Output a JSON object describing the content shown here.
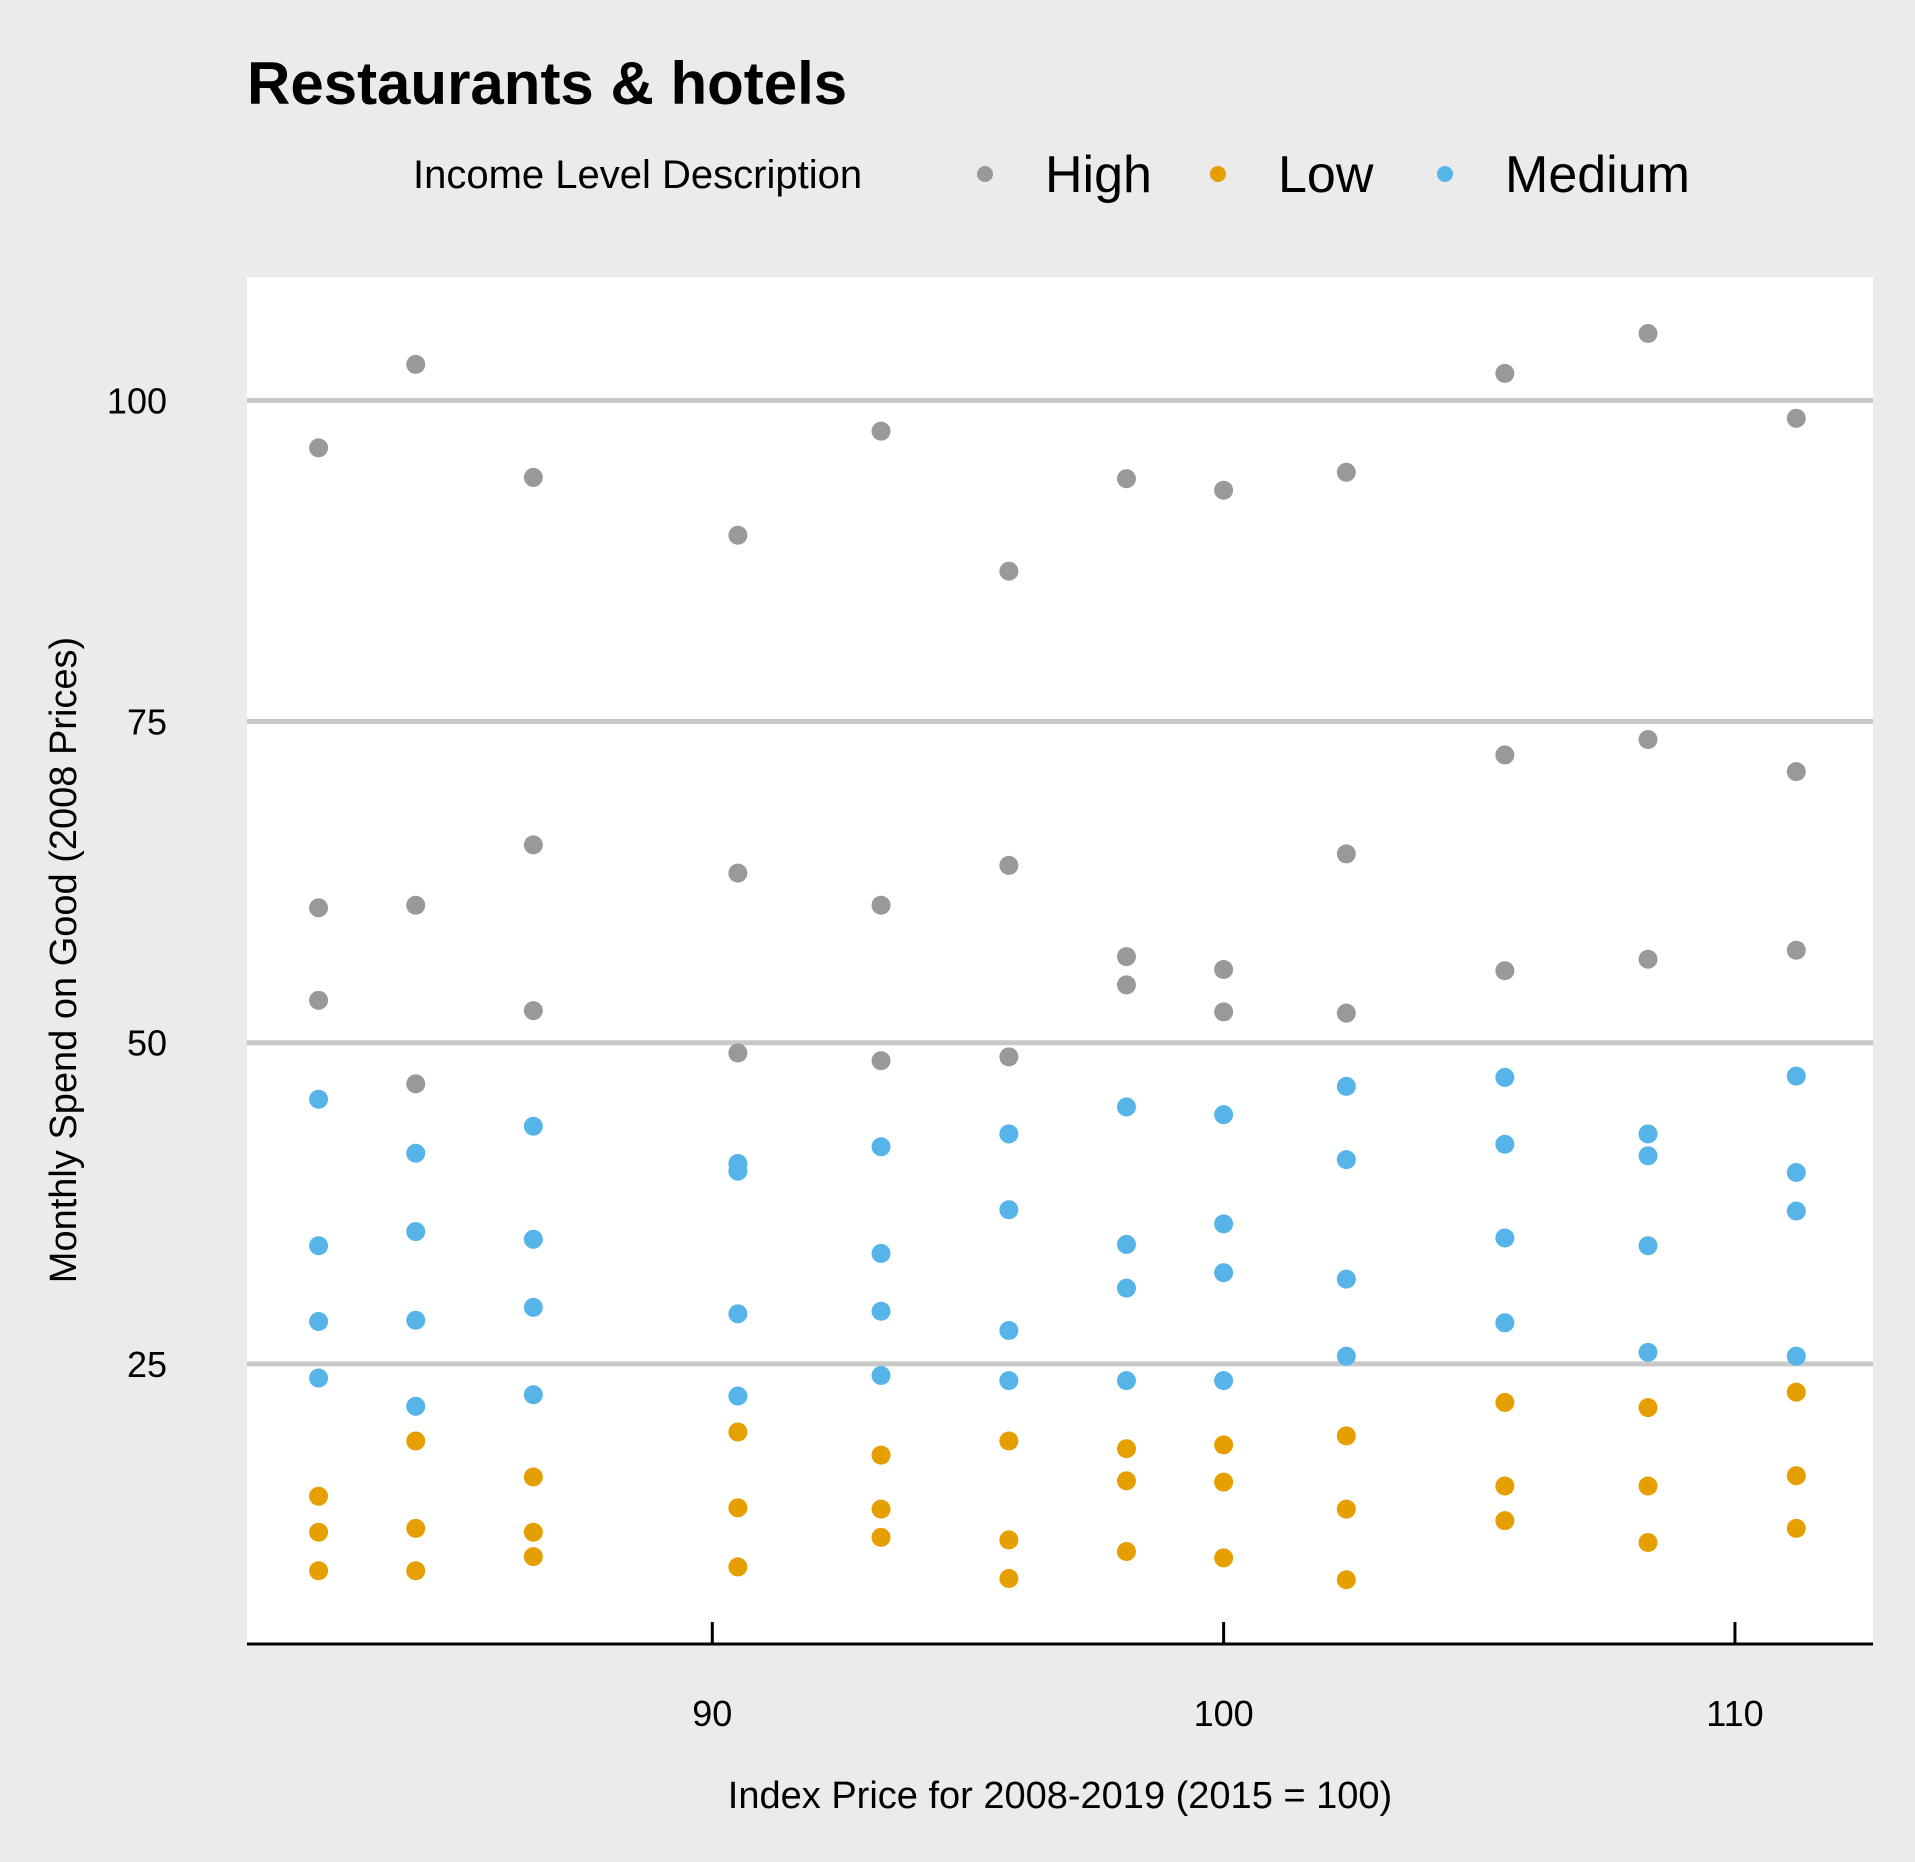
{
  "chart_data": {
    "type": "scatter",
    "title": "Restaurants & hotels",
    "xlabel": "Index Price for 2008-2019 (2015 = 100)",
    "ylabel": "Monthly Spend on Good (2008 Prices)",
    "xlim": [
      80.9,
      112.7
    ],
    "ylim": [
      3.2,
      109.6
    ],
    "xticks": [
      90,
      100,
      110
    ],
    "yticks": [
      25,
      50,
      75,
      100
    ],
    "grid": "horizontal",
    "legend": {
      "title": "Income Level Description",
      "placement": "top",
      "entries": [
        "High",
        "Low",
        "Medium"
      ]
    },
    "series": [
      {
        "name": "High",
        "color": "#999999",
        "points": [
          [
            82.3,
            96.3
          ],
          [
            82.3,
            60.5
          ],
          [
            82.3,
            53.3
          ],
          [
            84.2,
            102.8
          ],
          [
            84.2,
            60.7
          ],
          [
            84.2,
            46.8
          ],
          [
            86.5,
            94.0
          ],
          [
            86.5,
            65.4
          ],
          [
            86.5,
            52.5
          ],
          [
            90.5,
            89.5
          ],
          [
            90.5,
            63.2
          ],
          [
            90.5,
            49.2
          ],
          [
            93.3,
            97.6
          ],
          [
            93.3,
            60.7
          ],
          [
            93.3,
            48.6
          ],
          [
            95.8,
            86.7
          ],
          [
            95.8,
            63.8
          ],
          [
            95.8,
            48.9
          ],
          [
            98.1,
            93.9
          ],
          [
            98.1,
            56.7
          ],
          [
            98.1,
            54.5
          ],
          [
            100.0,
            93.0
          ],
          [
            100.0,
            55.7
          ],
          [
            100.0,
            52.4
          ],
          [
            102.4,
            94.4
          ],
          [
            102.4,
            64.7
          ],
          [
            102.4,
            52.3
          ],
          [
            105.5,
            102.1
          ],
          [
            105.5,
            72.4
          ],
          [
            105.5,
            55.6
          ],
          [
            108.3,
            105.2
          ],
          [
            108.3,
            73.6
          ],
          [
            108.3,
            56.5
          ],
          [
            111.2,
            98.6
          ],
          [
            111.2,
            71.1
          ],
          [
            111.2,
            57.2
          ]
        ]
      },
      {
        "name": "Low",
        "color": "#E69F00",
        "points": [
          [
            82.3,
            14.7
          ],
          [
            82.3,
            11.9
          ],
          [
            82.3,
            8.9
          ],
          [
            84.2,
            19.0
          ],
          [
            84.2,
            12.2
          ],
          [
            84.2,
            8.9
          ],
          [
            86.5,
            16.2
          ],
          [
            86.5,
            11.9
          ],
          [
            86.5,
            10.0
          ],
          [
            90.5,
            19.7
          ],
          [
            90.5,
            13.8
          ],
          [
            90.5,
            9.2
          ],
          [
            93.3,
            17.9
          ],
          [
            93.3,
            13.7
          ],
          [
            93.3,
            11.5
          ],
          [
            95.8,
            19.0
          ],
          [
            95.8,
            11.3
          ],
          [
            95.8,
            8.3
          ],
          [
            98.1,
            18.4
          ],
          [
            98.1,
            15.9
          ],
          [
            98.1,
            10.4
          ],
          [
            100.0,
            18.7
          ],
          [
            100.0,
            15.8
          ],
          [
            100.0,
            9.9
          ],
          [
            102.4,
            19.4
          ],
          [
            102.4,
            13.7
          ],
          [
            102.4,
            8.2
          ],
          [
            105.5,
            22.0
          ],
          [
            105.5,
            15.5
          ],
          [
            105.5,
            12.8
          ],
          [
            108.3,
            21.6
          ],
          [
            108.3,
            15.5
          ],
          [
            108.3,
            11.1
          ],
          [
            111.2,
            22.8
          ],
          [
            111.2,
            16.3
          ],
          [
            111.2,
            12.2
          ]
        ]
      },
      {
        "name": "Medium",
        "color": "#56B4E9",
        "points": [
          [
            82.3,
            45.6
          ],
          [
            82.3,
            34.2
          ],
          [
            82.3,
            28.3
          ],
          [
            82.3,
            23.9
          ],
          [
            84.2,
            41.4
          ],
          [
            84.2,
            35.3
          ],
          [
            84.2,
            28.4
          ],
          [
            84.2,
            21.7
          ],
          [
            86.5,
            43.5
          ],
          [
            86.5,
            34.7
          ],
          [
            86.5,
            29.4
          ],
          [
            86.5,
            22.6
          ],
          [
            90.5,
            40.6
          ],
          [
            90.5,
            40.0
          ],
          [
            90.5,
            28.9
          ],
          [
            90.5,
            22.5
          ],
          [
            93.3,
            41.9
          ],
          [
            93.3,
            33.6
          ],
          [
            93.3,
            29.1
          ],
          [
            93.3,
            24.1
          ],
          [
            95.8,
            42.9
          ],
          [
            95.8,
            37.0
          ],
          [
            95.8,
            27.6
          ],
          [
            95.8,
            23.7
          ],
          [
            98.1,
            45.0
          ],
          [
            98.1,
            34.3
          ],
          [
            98.1,
            30.9
          ],
          [
            98.1,
            23.7
          ],
          [
            100.0,
            44.4
          ],
          [
            100.0,
            35.9
          ],
          [
            100.0,
            32.1
          ],
          [
            100.0,
            23.7
          ],
          [
            102.4,
            46.6
          ],
          [
            102.4,
            40.9
          ],
          [
            102.4,
            31.6
          ],
          [
            102.4,
            25.6
          ],
          [
            105.5,
            47.3
          ],
          [
            105.5,
            42.1
          ],
          [
            105.5,
            34.8
          ],
          [
            105.5,
            28.2
          ],
          [
            108.3,
            42.9
          ],
          [
            108.3,
            41.2
          ],
          [
            108.3,
            34.2
          ],
          [
            108.3,
            25.9
          ],
          [
            111.2,
            47.4
          ],
          [
            111.2,
            39.9
          ],
          [
            111.2,
            36.9
          ],
          [
            111.2,
            25.6
          ]
        ]
      }
    ]
  }
}
